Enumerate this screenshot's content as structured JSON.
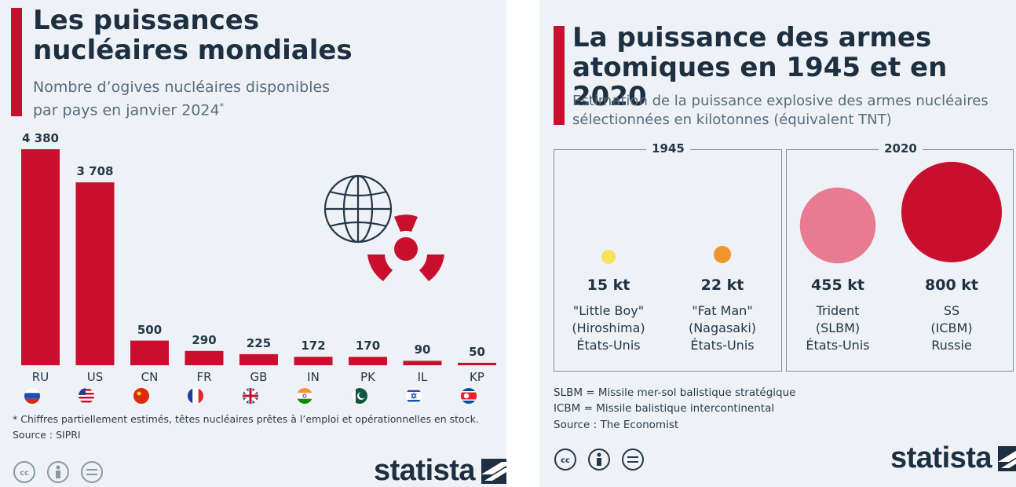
{
  "left": {
    "title_line1": "Les puissances",
    "title_line2": "nucléaires mondiales",
    "subtitle_line1": "Nombre d’ogives nucléaires disponibles",
    "subtitle_line2": "par pays en janvier 2024",
    "subtitle_mark": "*",
    "footnote": "* Chiffres partiellement estimés, têtes nucléaires prêtes à l’emploi et opérationnelles en stock.",
    "source": "Source : SIPRI",
    "brand": "statista",
    "icons": [
      "globe-icon",
      "radiation-icon"
    ],
    "colors": {
      "bar": "#c8102e",
      "title": "#1d2f40"
    }
  },
  "right": {
    "title_line1": "La puissance des armes",
    "title_line2": "atomiques en 1945 et en 2020",
    "subtitle_line1": "Estimation de la puissance explosive des armes nucléaires",
    "subtitle_line2": "sélectionnées en kilotonnes (équivalent TNT)",
    "groups": [
      {
        "label": "1945"
      },
      {
        "label": "2020"
      }
    ],
    "weapons": [
      {
        "value": "15 kt",
        "name1": "\"Little Boy\"",
        "name2": "(Hiroshima)",
        "country": "États-Unis",
        "color": "#f5e15a"
      },
      {
        "value": "22 kt",
        "name1": "\"Fat Man\"",
        "name2": "(Nagasaki)",
        "country": "États-Unis",
        "color": "#f0952e"
      },
      {
        "value": "455 kt",
        "name1": "Trident",
        "name2": "(SLBM)",
        "country": "États-Unis",
        "color": "#e87a91"
      },
      {
        "value": "800 kt",
        "name1": "SS",
        "name2": "(ICBM)",
        "country": "Russie",
        "color": "#c8102e"
      }
    ],
    "legend1": "SLBM = Missile mer-sol balistique stratégique",
    "legend2": "ICBM = Missile balistique intercontinental",
    "source": "Source : The Economist",
    "brand": "statista"
  },
  "chart_data": [
    {
      "type": "bar",
      "title": "Les puissances nucléaires mondiales",
      "subtitle": "Nombre d’ogives nucléaires disponibles par pays en janvier 2024*",
      "categories": [
        "RU",
        "US",
        "CN",
        "FR",
        "GB",
        "IN",
        "PK",
        "IL",
        "KP"
      ],
      "values": [
        4380,
        3708,
        500,
        290,
        225,
        172,
        170,
        90,
        50
      ],
      "value_labels": [
        "4 380",
        "3 708",
        "500",
        "290",
        "225",
        "172",
        "170",
        "90",
        "50"
      ],
      "flags": [
        "russia-flag-icon",
        "usa-flag-icon",
        "china-flag-icon",
        "france-flag-icon",
        "uk-flag-icon",
        "india-flag-icon",
        "pakistan-flag-icon",
        "israel-flag-icon",
        "north-korea-flag-icon"
      ],
      "grid": false,
      "ylim": [
        0,
        4380
      ]
    },
    {
      "type": "bubble",
      "title": "La puissance des armes atomiques en 1945 et en 2020",
      "categories": [
        "\"Little Boy\"",
        "\"Fat Man\"",
        "Trident",
        "SS"
      ],
      "values": [
        15,
        22,
        455,
        800
      ],
      "unit": "kt",
      "groups": [
        "1945",
        "1945",
        "2020",
        "2020"
      ]
    }
  ]
}
